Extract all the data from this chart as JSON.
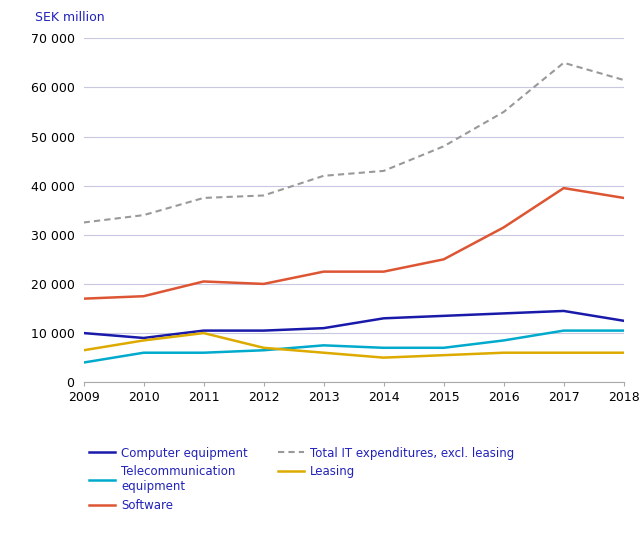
{
  "years": [
    2009,
    2010,
    2011,
    2012,
    2013,
    2014,
    2015,
    2016,
    2017,
    2018
  ],
  "computer_equipment": [
    10000,
    9000,
    10500,
    10500,
    11000,
    13000,
    13500,
    14000,
    14500,
    12500
  ],
  "telecom_equipment": [
    4000,
    6000,
    6000,
    6500,
    7500,
    7000,
    7000,
    8500,
    10500,
    10500
  ],
  "software": [
    17000,
    17500,
    20500,
    20000,
    22500,
    22500,
    25000,
    31500,
    39500,
    37500
  ],
  "leasing": [
    6500,
    8500,
    10000,
    7000,
    6000,
    5000,
    5500,
    6000,
    6000,
    6000
  ],
  "total_it": [
    32500,
    34000,
    37500,
    38000,
    42000,
    43000,
    48000,
    55000,
    65000,
    61500
  ],
  "ylabel": "SEK million",
  "ylim": [
    0,
    70000
  ],
  "yticks": [
    0,
    10000,
    20000,
    30000,
    40000,
    50000,
    60000,
    70000
  ],
  "ytick_labels": [
    "0",
    "10 000",
    "20 000",
    "30 000",
    "40 000",
    "50 000",
    "60 000",
    "70 000"
  ],
  "colors": {
    "computer_equipment": "#1a1aaa",
    "telecom_equipment": "#00aacc",
    "software": "#dd5533",
    "leasing": "#ddaa00",
    "total_it": "#999999"
  },
  "legend": {
    "computer_equipment": "Computer equipment",
    "telecom_equipment": "Telecommunication\nequipment",
    "software": "Software",
    "total_it": "Total IT expenditures, excl. leasing",
    "leasing": "Leasing"
  },
  "background_color": "#ffffff",
  "grid_color": "#c8c8e0",
  "ylabel_color": "#2222bb",
  "label_text_color": "#2222bb"
}
